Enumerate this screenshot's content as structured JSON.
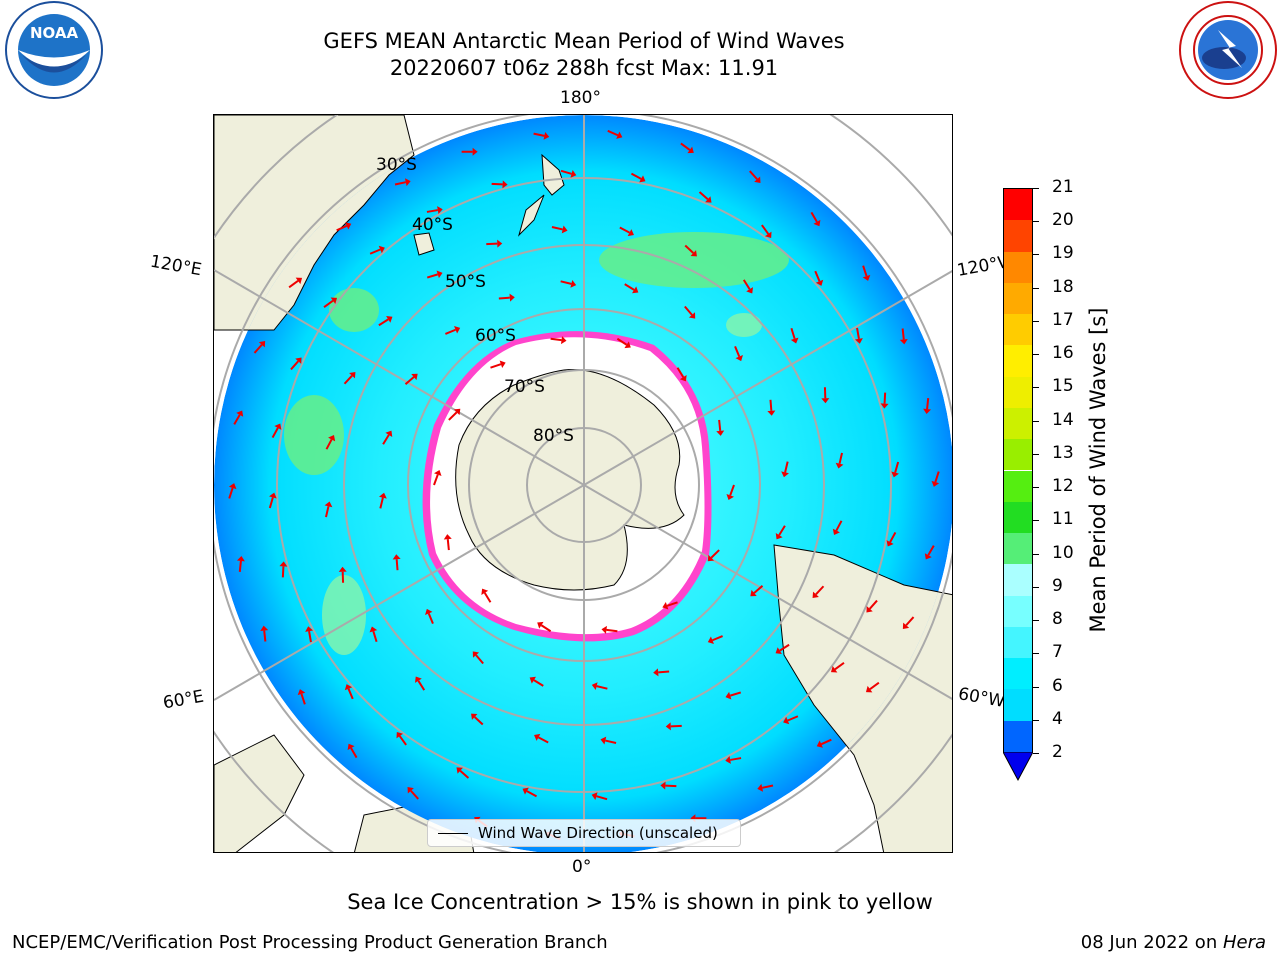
{
  "title": {
    "line1": "GEFS MEAN Antarctic Mean Period of Wind Waves",
    "line2": "20220607 t06z 288h fcst   Max: 11.91"
  },
  "map": {
    "projection": "south-polar-stereographic",
    "lon_labels": {
      "top": "180°",
      "bottom": "0°",
      "left_upper": "120°E",
      "left_lower": "60°E",
      "right_upper": "120°W",
      "right_lower": "60°W"
    },
    "lat_labels": [
      "30°S",
      "40°S",
      "50°S",
      "60°S",
      "70°S",
      "80°S"
    ],
    "legend_label": "Wind Wave Direction (unscaled)"
  },
  "colorbar": {
    "label": "Mean Period of Wind Waves [s]",
    "ticks": [
      "2",
      "4",
      "6",
      "7",
      "8",
      "9",
      "10",
      "11",
      "12",
      "13",
      "14",
      "15",
      "16",
      "17",
      "18",
      "19",
      "20",
      "21"
    ],
    "colors": [
      "#0066ff",
      "#00ddff",
      "#00eeff",
      "#44f5ff",
      "#77ffff",
      "#aaffff",
      "#55ee77",
      "#22dd22",
      "#55ee11",
      "#99ee00",
      "#ccf000",
      "#eeee00",
      "#ffee00",
      "#ffcc00",
      "#ffaa00",
      "#ff8800",
      "#ff4400",
      "#ff0000"
    ],
    "extend_color": "#0000ee",
    "extend": "min"
  },
  "caption": "Sea Ice Concentration > 15% is shown in pink to yellow",
  "footer": {
    "left": "NCEP/EMC/Verification Post Processing Product Generation Branch",
    "right_date": "08 Jun 2022 on ",
    "right_host": "Hera"
  },
  "logos": {
    "left": "noaa-logo",
    "right": "national-weather-service-logo"
  }
}
